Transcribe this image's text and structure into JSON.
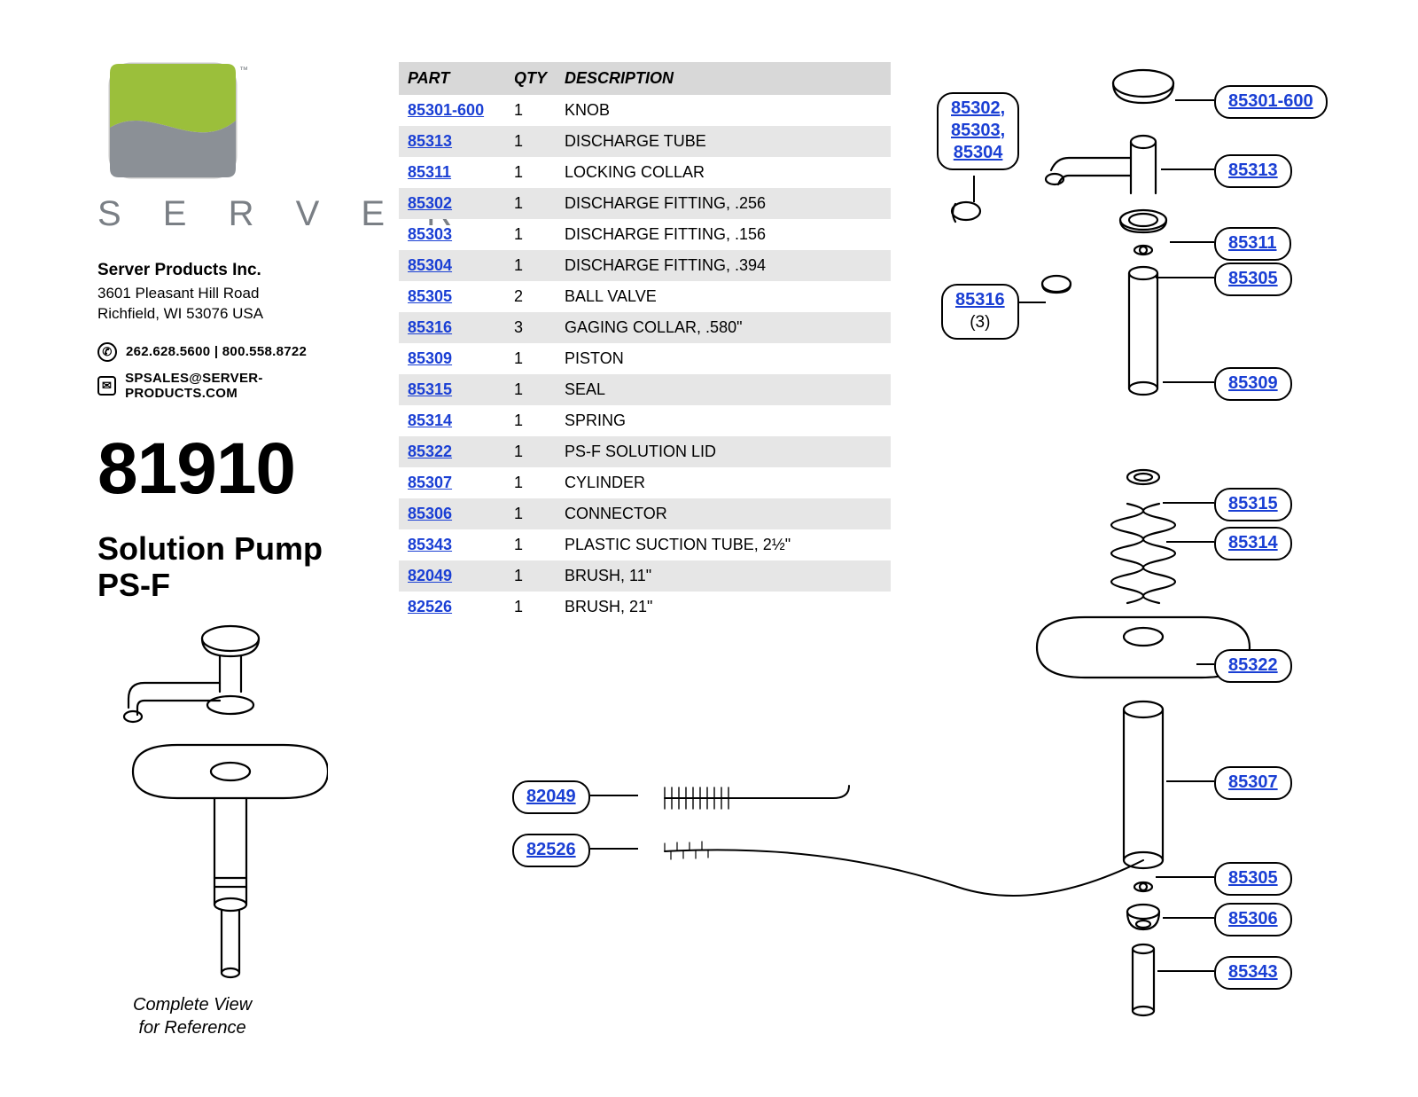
{
  "brand": {
    "wordmark": "S E R V E R",
    "logo_green": "#9bbf3b",
    "logo_gray": "#8b9096",
    "tm": "™"
  },
  "company": {
    "name": "Server Products Inc.",
    "addr1": "3601 Pleasant Hill Road",
    "addr2": "Richfield, WI  53076 USA",
    "phone": "262.628.5600 | 800.558.8722",
    "email": "SPSALES@SERVER-PRODUCTS.COM"
  },
  "product": {
    "number": "81910",
    "title_line1": "Solution Pump",
    "title_line2": "PS-F",
    "complete_view_1": "Complete View",
    "complete_view_2": "for Reference"
  },
  "table": {
    "headers": {
      "part": "PART",
      "qty": "QTY",
      "desc": "DESCRIPTION"
    },
    "rows": [
      {
        "part": "85301-600",
        "qty": "1",
        "desc": "KNOB"
      },
      {
        "part": "85313",
        "qty": "1",
        "desc": "DISCHARGE TUBE"
      },
      {
        "part": "85311",
        "qty": "1",
        "desc": "LOCKING COLLAR"
      },
      {
        "part": "85302",
        "qty": "1",
        "desc": "DISCHARGE FITTING, .256"
      },
      {
        "part": "85303",
        "qty": "1",
        "desc": "DISCHARGE FITTING, .156"
      },
      {
        "part": "85304",
        "qty": "1",
        "desc": "DISCHARGE FITTING, .394"
      },
      {
        "part": "85305",
        "qty": "2",
        "desc": "BALL VALVE"
      },
      {
        "part": "85316",
        "qty": "3",
        "desc": "GAGING COLLAR, .580\""
      },
      {
        "part": "85309",
        "qty": "1",
        "desc": "PISTON"
      },
      {
        "part": "85315",
        "qty": "1",
        "desc": "SEAL"
      },
      {
        "part": "85314",
        "qty": "1",
        "desc": "SPRING"
      },
      {
        "part": "85322",
        "qty": "1",
        "desc": "PS-F SOLUTION LID"
      },
      {
        "part": "85307",
        "qty": "1",
        "desc": "CYLINDER"
      },
      {
        "part": "85306",
        "qty": "1",
        "desc": "CONNECTOR"
      },
      {
        "part": "85343",
        "qty": "1",
        "desc": "PLASTIC SUCTION TUBE, 2½\""
      },
      {
        "part": "82049",
        "qty": "1",
        "desc": "BRUSH, 11\""
      },
      {
        "part": "82526",
        "qty": "1",
        "desc": "BRUSH, 21\""
      }
    ]
  },
  "callouts": {
    "fittings": {
      "a": "85302,",
      "b": "85303,",
      "c": "85304"
    },
    "gaging": {
      "part": "85316",
      "qty_label": "(3)"
    },
    "right": [
      "85301-600",
      "85313",
      "85311",
      "85305",
      "85309",
      "85315",
      "85314",
      "85322",
      "85307",
      "85305",
      "85306",
      "85343"
    ],
    "brushes": {
      "a": "82049",
      "b": "82526"
    }
  },
  "colors": {
    "link": "#1a3fd4",
    "row_alt_bg": "#e6e6e6",
    "header_bg": "#d8d8d8",
    "text": "#000000",
    "brand_text": "#7a7f85"
  }
}
